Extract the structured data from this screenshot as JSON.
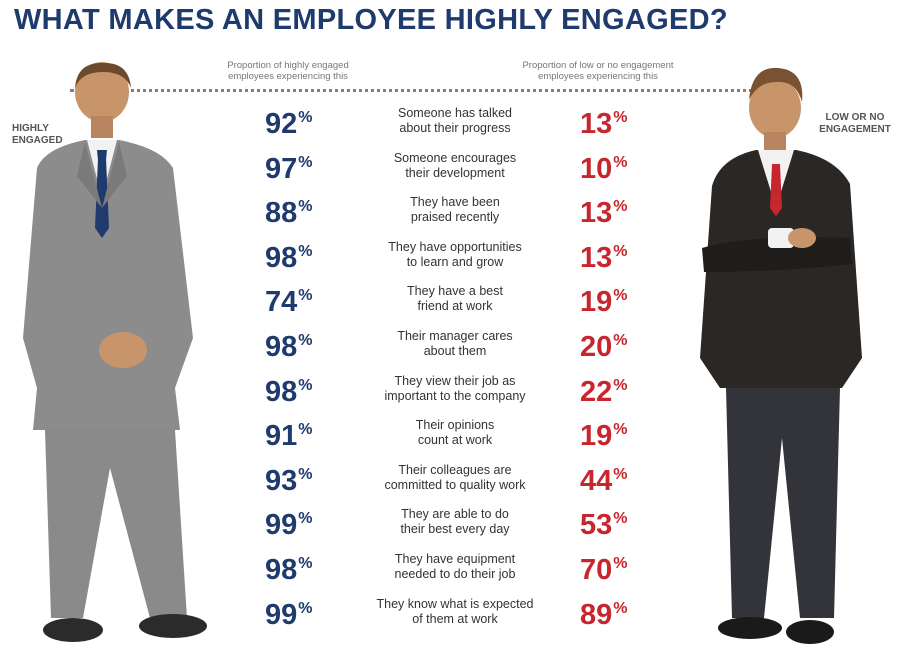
{
  "title": "WHAT MAKES AN EMPLOYEE HIGHLY ENGAGED?",
  "col_left": "Proportion of highly engaged\nemployees experiencing this",
  "col_right": "Proportion of low or no engagement\nemployees experiencing this",
  "label_left": "HIGHLY\nENGAGED",
  "label_right": "LOW OR NO\nENGAGEMENT",
  "colors": {
    "highly_engaged": "#1f3b6e",
    "low_engagement": "#c8262f"
  },
  "chart_data": {
    "type": "table",
    "rows": [
      {
        "label": "Someone has talked\nabout their progress",
        "highly": 92,
        "low": 13
      },
      {
        "label": "Someone encourages\ntheir development",
        "highly": 97,
        "low": 10
      },
      {
        "label": "They have been\npraised recently",
        "highly": 88,
        "low": 13
      },
      {
        "label": "They have opportunities\nto learn and grow",
        "highly": 98,
        "low": 13
      },
      {
        "label": "They have a best\nfriend at work",
        "highly": 74,
        "low": 19
      },
      {
        "label": "Their manager cares\nabout them",
        "highly": 98,
        "low": 20
      },
      {
        "label": "They view their job as\nimportant to the company",
        "highly": 98,
        "low": 22
      },
      {
        "label": "Their opinions\ncount at work",
        "highly": 91,
        "low": 19
      },
      {
        "label": "Their colleagues are\ncommitted to quality work",
        "highly": 93,
        "low": 44
      },
      {
        "label": "They are able to do\ntheir best every day",
        "highly": 99,
        "low": 53
      },
      {
        "label": "They have equipment\nneeded to do their job",
        "highly": 98,
        "low": 70
      },
      {
        "label": "They know what is expected\nof them at work",
        "highly": 99,
        "low": 89
      }
    ]
  }
}
